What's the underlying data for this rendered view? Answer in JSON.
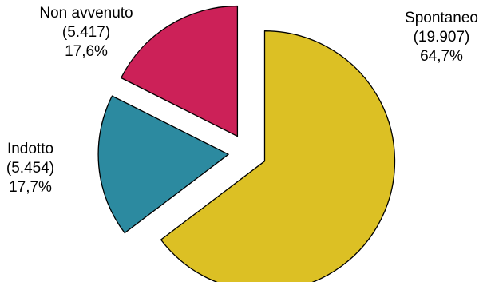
{
  "chart_data": {
    "type": "pie",
    "exploded": true,
    "slices": [
      {
        "label": "Spontaneo",
        "count": "(19.907)",
        "percent": "64,7%",
        "value": 19907,
        "color": "#dcc024"
      },
      {
        "label": "Indotto",
        "count": "(5.454)",
        "percent": "17,7%",
        "value": 5454,
        "color": "#2c8aa0"
      },
      {
        "label": "Non avvenuto",
        "count": "(5.417)",
        "percent": "17,6%",
        "value": 5417,
        "color": "#cc2158"
      }
    ]
  }
}
